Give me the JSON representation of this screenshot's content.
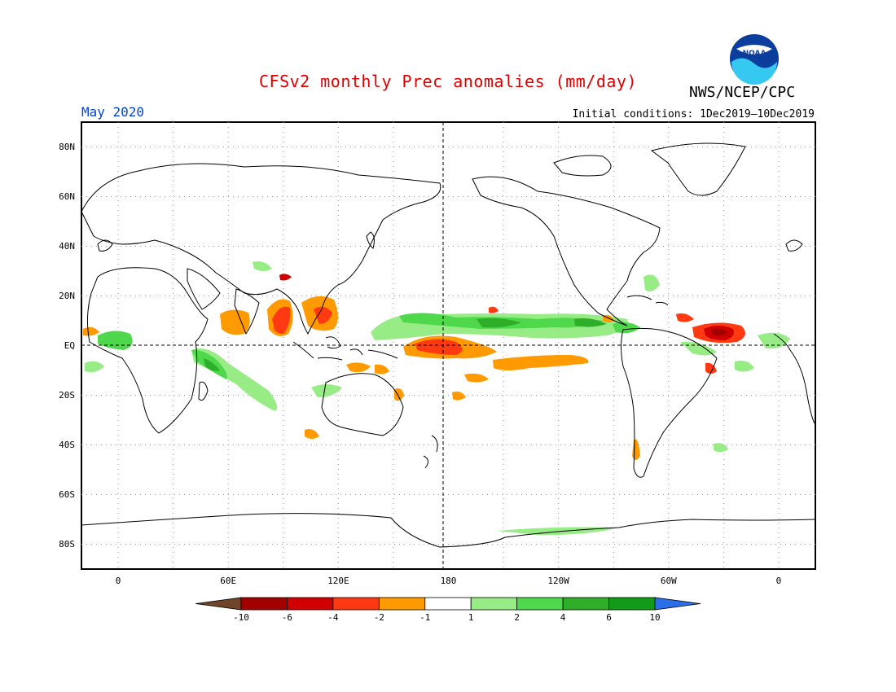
{
  "header": {
    "title": "CFSv2 monthly Prec anomalies (mm/day)",
    "agency": "NWS/NCEP/CPC",
    "period": "May 2020",
    "initial_conditions": "Initial conditions: 1Dec2019—10Dec2019",
    "logo_text": "NOAA"
  },
  "map": {
    "projection": "cylindrical equidistant",
    "lon_range": [
      -20,
      380
    ],
    "lat_range": [
      -90,
      90
    ],
    "lat_labels": [
      "80N",
      "60N",
      "40N",
      "20N",
      "EQ",
      "20S",
      "40S",
      "60S",
      "80S"
    ],
    "lon_labels": [
      "0",
      "60E",
      "120E",
      "180",
      "120W",
      "60W",
      "0"
    ],
    "grid": true
  },
  "colorbar": {
    "tick_labels": [
      "-10",
      "-6",
      "-4",
      "-2",
      "-1",
      "1",
      "2",
      "4",
      "6",
      "10"
    ],
    "colors": [
      "#6e4528",
      "#a50000",
      "#d10000",
      "#ff3a12",
      "#ff9a00",
      "#ffffff",
      "#98ec86",
      "#50d84c",
      "#2fae2a",
      "#139a18",
      "#2a6ee8"
    ]
  }
}
